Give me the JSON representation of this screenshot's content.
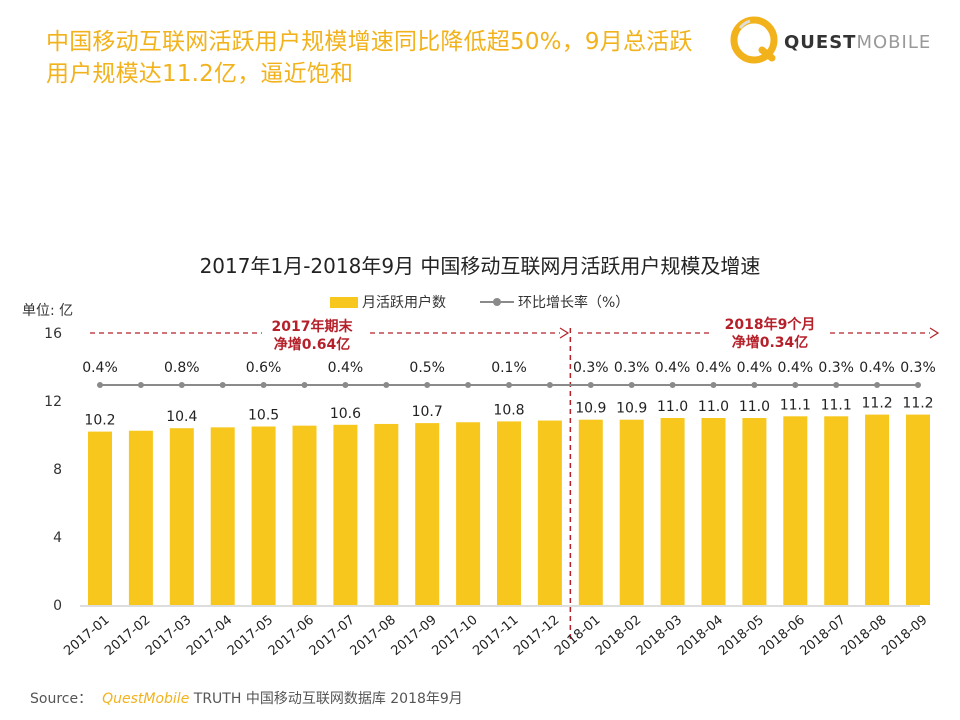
{
  "headline": "中国移动互联网活跃用户规模增速同比降低超50%，9月总活跃用户规模达11.2亿，逼近饱和",
  "logo": {
    "brand_bold": "QUEST",
    "brand_light": "MOBILE"
  },
  "colors": {
    "bar": "#F7C71E",
    "line": "#8a8a8a",
    "accent": "#B5202A",
    "headline": "#F2B21C"
  },
  "legend": {
    "bar_label": "月活跃用户数",
    "line_label": "环比增长率（%）"
  },
  "unit_label": "单位: 亿",
  "notes": {
    "left_line1": "2017年期末",
    "left_line2": "净增0.64亿",
    "right_line1": "2018年9个月",
    "right_line2": "净增0.34亿"
  },
  "source": {
    "prefix": "Source：",
    "brand": "QuestMobile",
    "rest": " TRUTH 中国移动互联网数据库 2018年9月"
  },
  "chart_data": {
    "type": "bar",
    "title": "2017年1月-2018年9月 中国移动互联网月活跃用户规模及增速",
    "ylabel": "单位: 亿",
    "ylim": [
      0,
      16
    ],
    "yticks": [
      0,
      4,
      8,
      12,
      16
    ],
    "categories": [
      "2017-01",
      "2017-02",
      "2017-03",
      "2017-04",
      "2017-05",
      "2017-06",
      "2017-07",
      "2017-08",
      "2017-09",
      "2017-10",
      "2017-11",
      "2017-12",
      "2018-01",
      "2018-02",
      "2018-03",
      "2018-04",
      "2018-05",
      "2018-06",
      "2018-07",
      "2018-08",
      "2018-09"
    ],
    "series": [
      {
        "name": "月活跃用户数",
        "values": [
          10.2,
          10.25,
          10.4,
          10.45,
          10.5,
          10.55,
          10.6,
          10.65,
          10.7,
          10.75,
          10.8,
          10.85,
          10.9,
          10.9,
          11.0,
          11.0,
          11.0,
          11.1,
          11.1,
          11.2,
          11.2
        ],
        "labels": [
          "10.2",
          "",
          "10.4",
          "",
          "10.5",
          "",
          "10.6",
          "",
          "10.7",
          "",
          "10.8",
          "",
          "10.9",
          "10.9",
          "11.0",
          "11.0",
          "11.0",
          "11.1",
          "11.1",
          "11.2",
          "11.2"
        ]
      },
      {
        "name": "环比增长率（%）",
        "labels": [
          "0.4%",
          "",
          "0.8%",
          "",
          "0.6%",
          "",
          "0.4%",
          "",
          "0.5%",
          "",
          "0.1%",
          "",
          "0.3%",
          "0.3%",
          "0.4%",
          "0.4%",
          "0.4%",
          "0.4%",
          "0.3%",
          "0.4%",
          "0.3%"
        ]
      }
    ],
    "divider_after": "2017-12"
  }
}
